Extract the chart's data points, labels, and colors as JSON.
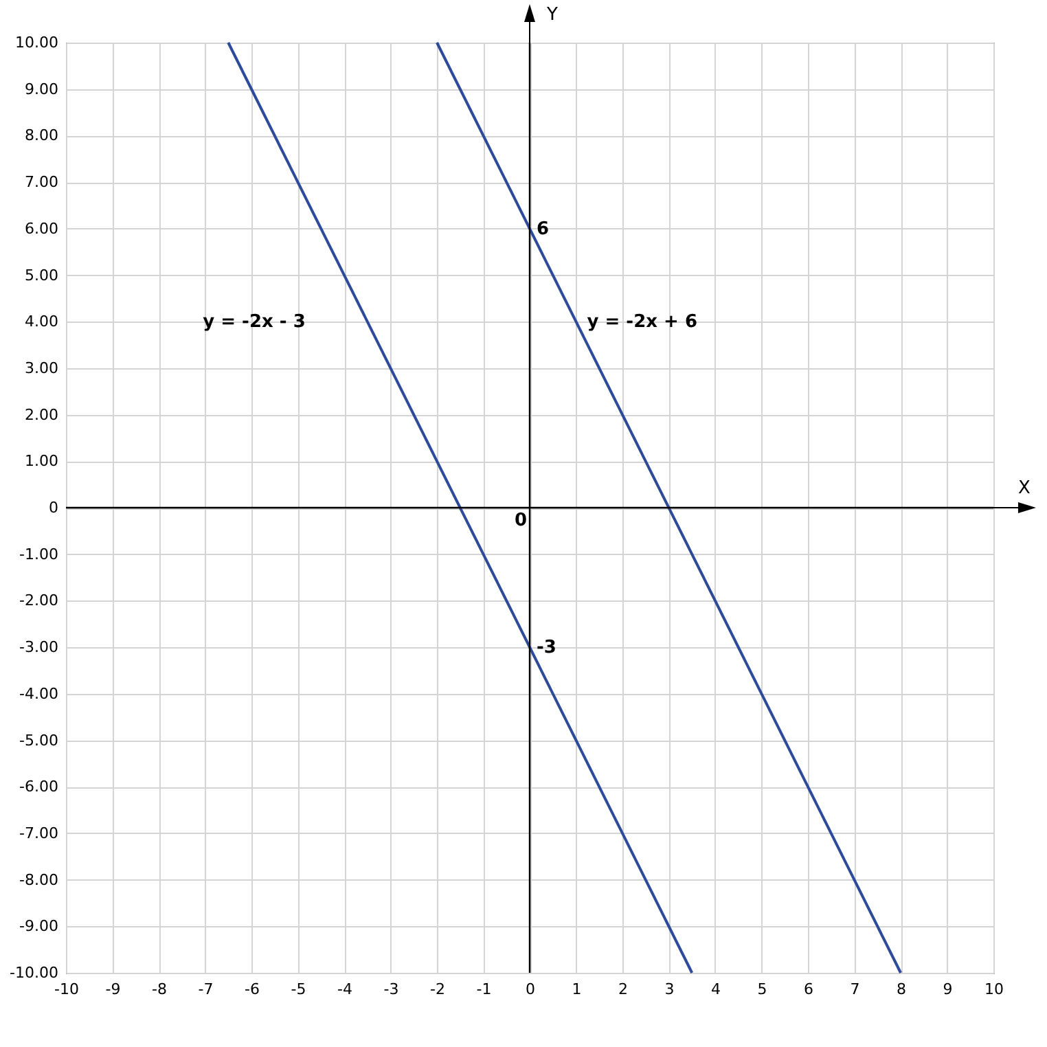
{
  "chart_data": {
    "type": "line",
    "xlabel": "X",
    "ylabel": "Y",
    "series": [
      {
        "name": "y = -2x - 3",
        "color": "#2e4b9b",
        "x": [
          -6.5,
          3.5
        ],
        "values": [
          10,
          -10
        ]
      },
      {
        "name": "y = -2x + 6",
        "color": "#2e4b9b",
        "x": [
          -2,
          8
        ],
        "values": [
          10,
          -10
        ]
      }
    ],
    "xlim": [
      -10,
      10
    ],
    "ylim": [
      -10,
      10
    ],
    "xticks": [
      -10,
      -9,
      -8,
      -7,
      -6,
      -5,
      -4,
      -3,
      -2,
      -1,
      0,
      1,
      2,
      3,
      4,
      5,
      6,
      7,
      8,
      9,
      10
    ],
    "yticks": [
      {
        "value": -10,
        "label": "-10.00"
      },
      {
        "value": -9,
        "label": "-9.00"
      },
      {
        "value": -8,
        "label": "-8.00"
      },
      {
        "value": -7,
        "label": "-7.00"
      },
      {
        "value": -6,
        "label": "-6.00"
      },
      {
        "value": -5,
        "label": "-5.00"
      },
      {
        "value": -4,
        "label": "-4.00"
      },
      {
        "value": -3,
        "label": "-3.00"
      },
      {
        "value": -2,
        "label": "-2.00"
      },
      {
        "value": -1,
        "label": "-1.00"
      },
      {
        "value": 0,
        "label": "0"
      },
      {
        "value": 1,
        "label": "1.00"
      },
      {
        "value": 2,
        "label": "2.00"
      },
      {
        "value": 3,
        "label": "3.00"
      },
      {
        "value": 4,
        "label": "4.00"
      },
      {
        "value": 5,
        "label": "5.00"
      },
      {
        "value": 6,
        "label": "6.00"
      },
      {
        "value": 7,
        "label": "7.00"
      },
      {
        "value": 8,
        "label": "8.00"
      },
      {
        "value": 9,
        "label": "9.00"
      },
      {
        "value": 10,
        "label": "10.00"
      }
    ],
    "annotations": [
      {
        "text": "6",
        "x": 0,
        "y": 6
      },
      {
        "text": "-3",
        "x": 0,
        "y": -3
      },
      "0"
    ],
    "grid": true
  }
}
